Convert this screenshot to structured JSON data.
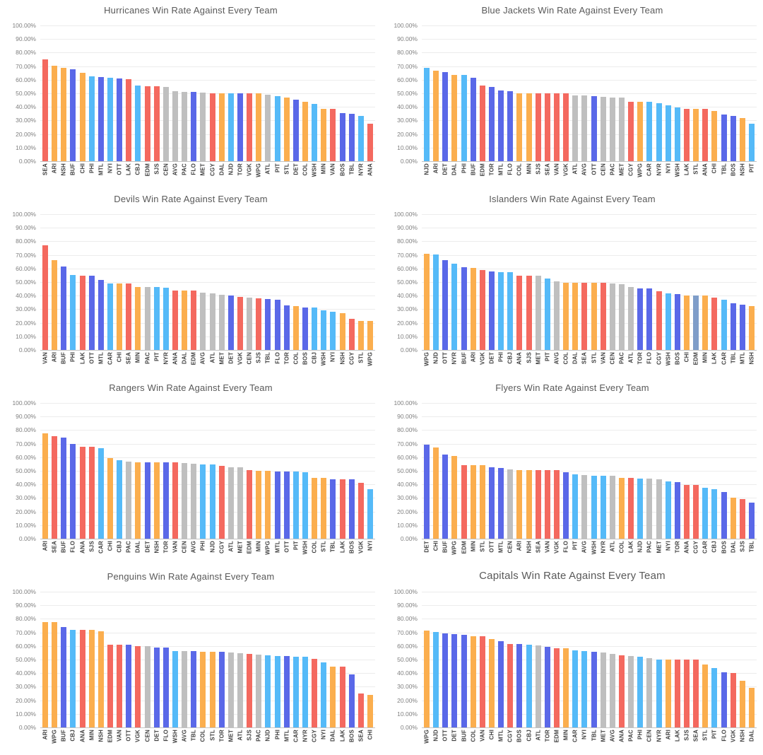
{
  "palette": {
    "pac": "#f4695f",
    "cen": "#fbae4e",
    "atl": "#5a68e8",
    "met": "#55baf8",
    "agg": "#bfbfbf",
    "steel": "#7f9dc9"
  },
  "y_axis_ticks": [
    "100.00%",
    "90.00%",
    "80.00%",
    "70.00%",
    "60.00%",
    "50.00%",
    "40.00%",
    "30.00%",
    "20.00%",
    "10.00%",
    "0.00%"
  ],
  "chart_data": [
    {
      "type": "bar",
      "title": "Hurricanes Win Rate Against Every Team",
      "ylim": [
        0,
        100
      ],
      "ytick_format": "percent_2dp",
      "grid": true,
      "legend": false,
      "categories": [
        "SEA",
        "ARI",
        "NSH",
        "BUF",
        "CHI",
        "PHI",
        "MTL",
        "NYI",
        "OTT",
        "LAK",
        "CBJ",
        "EDM",
        "SJS",
        "CEN",
        "AVG",
        "PAC",
        "FLO",
        "MET",
        "CGY",
        "DAL",
        "NJD",
        "TOR",
        "VGK",
        "WPG",
        "ATL",
        "PIT",
        "STL",
        "DET",
        "COL",
        "WSH",
        "MIN",
        "VAN",
        "BOS",
        "TBL",
        "NYR",
        "ANA"
      ],
      "values": [
        75,
        70.5,
        69,
        67.5,
        65,
        62.5,
        62,
        61.5,
        61,
        60.5,
        55.5,
        55,
        55,
        54.5,
        51.5,
        51,
        51,
        50.5,
        50,
        50,
        50,
        50,
        50,
        50,
        49,
        48,
        47,
        45.5,
        44,
        42,
        38.5,
        38.5,
        35.5,
        35,
        33.5,
        27.5
      ],
      "divisions": [
        "pac",
        "cen",
        "cen",
        "atl",
        "cen",
        "met",
        "atl",
        "met",
        "atl",
        "pac",
        "met",
        "pac",
        "pac",
        "agg",
        "agg",
        "agg",
        "atl",
        "agg",
        "pac",
        "cen",
        "met",
        "atl",
        "pac",
        "cen",
        "agg",
        "met",
        "cen",
        "atl",
        "cen",
        "met",
        "cen",
        "pac",
        "atl",
        "atl",
        "met",
        "pac"
      ]
    },
    {
      "type": "bar",
      "title": "Blue Jackets Win Rate Against Every Team",
      "ylim": [
        0,
        100
      ],
      "ytick_format": "percent_2dp",
      "grid": true,
      "legend": false,
      "categories": [
        "NJD",
        "ARI",
        "DET",
        "DAL",
        "PHI",
        "BUF",
        "EDM",
        "TOR",
        "MTL",
        "FLO",
        "COL",
        "MIN",
        "SJS",
        "SEA",
        "VAN",
        "VGK",
        "ATL",
        "AVG",
        "OTT",
        "CEN",
        "PAC",
        "MET",
        "CGY",
        "WPG",
        "CAR",
        "NYR",
        "NYI",
        "WSH",
        "LAK",
        "STL",
        "ANA",
        "CHI",
        "TBL",
        "BOS",
        "NSH",
        "PIT"
      ],
      "values": [
        68.5,
        66.5,
        65.5,
        63.5,
        63.5,
        61.5,
        55.5,
        54.5,
        52,
        51.5,
        50,
        50,
        50,
        50,
        50,
        50,
        48.5,
        48.5,
        48,
        47.5,
        47,
        47,
        43.5,
        43.5,
        43.5,
        42.5,
        41,
        39.5,
        38.5,
        38.5,
        38.5,
        37,
        34.5,
        33.5,
        32,
        27.5
      ],
      "divisions": [
        "met",
        "cen",
        "atl",
        "cen",
        "met",
        "atl",
        "pac",
        "atl",
        "atl",
        "atl",
        "cen",
        "cen",
        "pac",
        "pac",
        "pac",
        "pac",
        "agg",
        "agg",
        "atl",
        "agg",
        "agg",
        "agg",
        "pac",
        "cen",
        "met",
        "met",
        "met",
        "met",
        "pac",
        "cen",
        "pac",
        "cen",
        "atl",
        "atl",
        "cen",
        "met"
      ]
    },
    {
      "type": "bar",
      "title": "Devils Win Rate Against Every Team",
      "ylim": [
        0,
        100
      ],
      "ytick_format": "percent_2dp",
      "grid": true,
      "legend": false,
      "categories": [
        "VAN",
        "ARI",
        "BUF",
        "PHI",
        "LAK",
        "OTT",
        "MTL",
        "CAR",
        "CHI",
        "SEA",
        "MIN",
        "PAC",
        "PIT",
        "NYR",
        "ANA",
        "DAL",
        "EDM",
        "AVG",
        "ATL",
        "MET",
        "DET",
        "VGK",
        "CEN",
        "SJS",
        "TBL",
        "FLO",
        "TOR",
        "COL",
        "BOS",
        "CBJ",
        "WSH",
        "NYI",
        "NSH",
        "CGY",
        "STL",
        "WPG"
      ],
      "values": [
        77,
        66,
        61.5,
        55,
        54.5,
        54.5,
        51.5,
        49,
        49,
        49,
        46.5,
        46.5,
        46.5,
        46,
        43.5,
        43.5,
        43.5,
        42,
        41.5,
        40.5,
        40,
        39,
        38.5,
        38,
        37.5,
        37,
        33,
        32.5,
        31,
        31,
        29,
        28,
        27,
        23,
        21.5,
        21.5
      ],
      "divisions": [
        "pac",
        "cen",
        "atl",
        "met",
        "pac",
        "atl",
        "atl",
        "met",
        "cen",
        "pac",
        "cen",
        "agg",
        "met",
        "met",
        "pac",
        "cen",
        "pac",
        "agg",
        "agg",
        "agg",
        "atl",
        "pac",
        "agg",
        "pac",
        "atl",
        "atl",
        "atl",
        "cen",
        "atl",
        "met",
        "met",
        "met",
        "cen",
        "pac",
        "cen",
        "cen"
      ]
    },
    {
      "type": "bar",
      "title": "Islanders Win Rate Against Every Team",
      "ylim": [
        0,
        100
      ],
      "ytick_format": "percent_2dp",
      "grid": true,
      "legend": false,
      "categories": [
        "WPG",
        "NJD",
        "OTT",
        "NYR",
        "BUF",
        "ARI",
        "VGK",
        "DET",
        "PHI",
        "CBJ",
        "ANA",
        "SJS",
        "MET",
        "PIT",
        "AVG",
        "COL",
        "DAL",
        "SEA",
        "STL",
        "VAN",
        "CEN",
        "PAC",
        "ATL",
        "TOR",
        "FLO",
        "CGY",
        "WSH",
        "BOS",
        "CHI",
        "EDM",
        "MIN",
        "LAK",
        "CAR",
        "TBL",
        "MTL",
        "NSH"
      ],
      "values": [
        71,
        70.5,
        66,
        63.5,
        61,
        60.5,
        59,
        58,
        57.5,
        57.5,
        54.5,
        54.5,
        54.5,
        52.5,
        50.5,
        49.5,
        49.5,
        49.5,
        49.5,
        49.5,
        49,
        48.5,
        46.5,
        45.5,
        45.5,
        43,
        41.5,
        41,
        40,
        40,
        40,
        38.5,
        37,
        34.5,
        33.5,
        32.5
      ],
      "divisions": [
        "cen",
        "met",
        "atl",
        "met",
        "atl",
        "cen",
        "pac",
        "atl",
        "met",
        "met",
        "pac",
        "pac",
        "agg",
        "met",
        "agg",
        "cen",
        "cen",
        "pac",
        "cen",
        "pac",
        "agg",
        "agg",
        "agg",
        "atl",
        "atl",
        "pac",
        "met",
        "atl",
        "cen",
        "steel",
        "cen",
        "pac",
        "met",
        "atl",
        "atl",
        "cen"
      ]
    },
    {
      "type": "bar",
      "title": "Rangers Win Rate Against Every Team",
      "ylim": [
        0,
        100
      ],
      "ytick_format": "percent_2dp",
      "grid": true,
      "legend": false,
      "categories": [
        "ARI",
        "SEA",
        "BUF",
        "FLO",
        "ANA",
        "SJS",
        "CAR",
        "CHI",
        "CBJ",
        "PAC",
        "DAL",
        "DET",
        "NSH",
        "TOR",
        "VAN",
        "CEN",
        "AVG",
        "PHI",
        "NJD",
        "CGY",
        "ATL",
        "MET",
        "EDM",
        "MIN",
        "WPG",
        "MTL",
        "OTT",
        "PIT",
        "WSH",
        "COL",
        "STL",
        "TBL",
        "LAK",
        "BOS",
        "VGK",
        "NYI"
      ],
      "values": [
        77.5,
        75.5,
        74.5,
        70,
        67.5,
        67.5,
        66.5,
        59.5,
        58,
        57,
        56,
        56,
        56,
        56,
        56,
        55.5,
        55,
        54.5,
        54.5,
        53.5,
        52.5,
        52.5,
        50.5,
        50,
        50,
        49.5,
        49.5,
        49.5,
        49,
        45,
        45,
        44,
        44,
        44,
        41,
        36.5
      ],
      "divisions": [
        "cen",
        "pac",
        "atl",
        "atl",
        "pac",
        "pac",
        "met",
        "cen",
        "met",
        "agg",
        "cen",
        "atl",
        "cen",
        "atl",
        "pac",
        "agg",
        "agg",
        "met",
        "met",
        "pac",
        "agg",
        "agg",
        "pac",
        "cen",
        "cen",
        "atl",
        "atl",
        "met",
        "met",
        "cen",
        "cen",
        "atl",
        "pac",
        "atl",
        "pac",
        "met"
      ]
    },
    {
      "type": "bar",
      "title": "Flyers Win Rate Against Every Team",
      "ylim": [
        0,
        100
      ],
      "ytick_format": "percent_2dp",
      "grid": true,
      "legend": false,
      "categories": [
        "DET",
        "CHI",
        "BUF",
        "WPG",
        "EDM",
        "MIN",
        "STL",
        "OTT",
        "MTL",
        "CEN",
        "ARI",
        "NSH",
        "SEA",
        "VAN",
        "VGK",
        "FLO",
        "PIT",
        "AVG",
        "WSH",
        "NYR",
        "ATL",
        "COL",
        "LAK",
        "NJD",
        "PAC",
        "MET",
        "NYI",
        "TOR",
        "ANA",
        "CGY",
        "CAR",
        "CBJ",
        "BOS",
        "DAL",
        "SJS",
        "TBL"
      ],
      "values": [
        69.5,
        67,
        62,
        61,
        54,
        54,
        54,
        52.5,
        52,
        51,
        50.5,
        50.5,
        50.5,
        50.5,
        50.5,
        49,
        47.5,
        47,
        46.5,
        46.5,
        46.5,
        45,
        45,
        44.5,
        44.5,
        43.5,
        42,
        41.5,
        39.5,
        39.5,
        37.5,
        36.5,
        34.5,
        30,
        29,
        26.5
      ],
      "divisions": [
        "atl",
        "cen",
        "atl",
        "cen",
        "pac",
        "cen",
        "cen",
        "atl",
        "atl",
        "agg",
        "cen",
        "cen",
        "pac",
        "pac",
        "pac",
        "atl",
        "met",
        "agg",
        "met",
        "met",
        "agg",
        "cen",
        "pac",
        "met",
        "agg",
        "agg",
        "met",
        "atl",
        "pac",
        "pac",
        "met",
        "met",
        "atl",
        "cen",
        "pac",
        "atl"
      ]
    },
    {
      "type": "bar",
      "title": "Penguins Win Rate Against Every Team",
      "ylim": [
        0,
        100
      ],
      "ytick_format": "percent_2dp",
      "grid": true,
      "legend": false,
      "categories": [
        "ARI",
        "WPG",
        "BUF",
        "CBJ",
        "ANA",
        "MIN",
        "NSH",
        "EDM",
        "VAN",
        "OTT",
        "VGK",
        "CEN",
        "DET",
        "FLO",
        "WSH",
        "AVG",
        "TBL",
        "COL",
        "STL",
        "TOR",
        "MET",
        "ATL",
        "SJS",
        "PAC",
        "NJD",
        "PHI",
        "MTL",
        "CAR",
        "NYR",
        "CGY",
        "NYI",
        "DAL",
        "LAK",
        "BOS",
        "SEA",
        "CHI"
      ],
      "values": [
        77.5,
        77.5,
        74,
        72,
        72,
        72,
        71,
        61,
        61,
        61,
        60,
        60,
        59,
        59,
        56.5,
        56.5,
        56,
        55.5,
        55.5,
        55.5,
        55,
        54.5,
        54,
        53.5,
        53,
        52.5,
        52.5,
        52,
        52,
        50.5,
        48,
        45,
        45,
        39,
        25,
        24
      ],
      "divisions": [
        "cen",
        "cen",
        "atl",
        "met",
        "pac",
        "cen",
        "cen",
        "pac",
        "pac",
        "atl",
        "pac",
        "agg",
        "atl",
        "atl",
        "met",
        "agg",
        "atl",
        "cen",
        "cen",
        "atl",
        "agg",
        "agg",
        "pac",
        "agg",
        "met",
        "met",
        "atl",
        "met",
        "met",
        "pac",
        "met",
        "cen",
        "pac",
        "atl",
        "pac",
        "cen"
      ]
    },
    {
      "type": "bar",
      "title": "Capitals Win Rate Against Every Team",
      "ylim": [
        0,
        100
      ],
      "ytick_format": "percent_2dp",
      "grid": true,
      "legend": false,
      "categories": [
        "WPG",
        "NJD",
        "OTT",
        "DET",
        "BUF",
        "COL",
        "VAN",
        "CHI",
        "MTL",
        "CGY",
        "BOS",
        "CBJ",
        "ATL",
        "TOR",
        "EDM",
        "MIN",
        "CAR",
        "NYI",
        "TBL",
        "MET",
        "AVG",
        "ANA",
        "PAC",
        "PHI",
        "CEN",
        "NYR",
        "ARI",
        "LAK",
        "SJS",
        "SEA",
        "STL",
        "PIT",
        "FLO",
        "VGK",
        "NSH",
        "DAL"
      ],
      "values": [
        71.5,
        70.5,
        69.5,
        68.5,
        68,
        67,
        67,
        65,
        63.5,
        61.5,
        61.5,
        61,
        60.5,
        59.5,
        58.5,
        58.5,
        57,
        56.5,
        55.5,
        55,
        54,
        53,
        52.5,
        52,
        51,
        50,
        50,
        50,
        50,
        50,
        46.5,
        43.5,
        40.5,
        40,
        34.5,
        29
      ],
      "divisions": [
        "cen",
        "met",
        "atl",
        "atl",
        "atl",
        "cen",
        "pac",
        "cen",
        "atl",
        "pac",
        "atl",
        "met",
        "agg",
        "atl",
        "pac",
        "cen",
        "met",
        "met",
        "atl",
        "agg",
        "agg",
        "pac",
        "agg",
        "met",
        "agg",
        "met",
        "cen",
        "pac",
        "pac",
        "pac",
        "cen",
        "met",
        "atl",
        "pac",
        "cen",
        "cen"
      ]
    }
  ]
}
